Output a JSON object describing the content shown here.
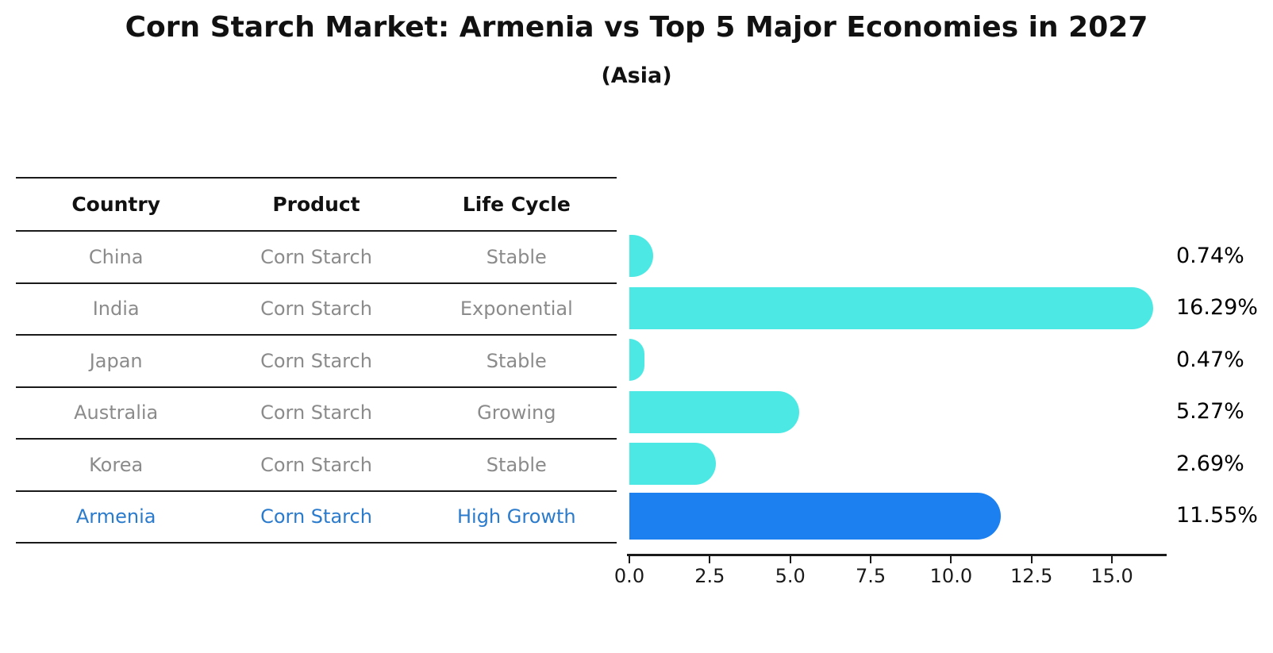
{
  "title": "Corn Starch Market: Armenia vs Top 5 Major Economies in 2027",
  "subtitle": "(Asia)",
  "table": {
    "headers": [
      "Country",
      "Product",
      "Life Cycle"
    ],
    "rows": [
      {
        "country": "China",
        "product": "Corn Starch",
        "life_cycle": "Stable",
        "highlight": false
      },
      {
        "country": "India",
        "product": "Corn Starch",
        "life_cycle": "Exponential",
        "highlight": false
      },
      {
        "country": "Japan",
        "product": "Corn Starch",
        "life_cycle": "Stable",
        "highlight": false
      },
      {
        "country": "Australia",
        "product": "Corn Starch",
        "life_cycle": "Growing",
        "highlight": false
      },
      {
        "country": "Korea",
        "product": "Corn Starch",
        "life_cycle": "Stable",
        "highlight": false
      },
      {
        "country": "Armenia",
        "product": "Corn Starch",
        "life_cycle": "High Growth",
        "highlight": true
      }
    ]
  },
  "chart_data": {
    "type": "bar",
    "orientation": "horizontal",
    "title": "Corn Starch Market: Armenia vs Top 5 Major Economies in 2027",
    "subtitle": "(Asia)",
    "categories": [
      "China",
      "India",
      "Japan",
      "Australia",
      "Korea",
      "Armenia"
    ],
    "values": [
      0.74,
      16.29,
      0.47,
      5.27,
      2.69,
      11.55
    ],
    "value_labels": [
      "0.74%",
      "16.29%",
      "0.47%",
      "5.27%",
      "2.69%",
      "11.55%"
    ],
    "x_ticks": [
      "0.0",
      "2.5",
      "5.0",
      "7.5",
      "10.0",
      "12.5",
      "15.0"
    ],
    "x_tick_values": [
      0,
      2.5,
      5,
      7.5,
      10,
      12.5,
      15
    ],
    "xlim": [
      0,
      16.7
    ],
    "xlabel": "",
    "ylabel": "",
    "grid": false,
    "legend": "none",
    "bar_color": "#4BE8E4",
    "highlight_color": "#1C80F0",
    "highlight_edge_color": "#1C80F0",
    "highlight_edge_style": "dotted",
    "highlight_index": 5
  },
  "colors": {
    "title_text": "#111111",
    "table_text": "#8b8b8b",
    "highlight_text": "#2b7bcd",
    "rule": "#1a1a1a",
    "value_label_text": "#000000",
    "background": "#ffffff"
  }
}
